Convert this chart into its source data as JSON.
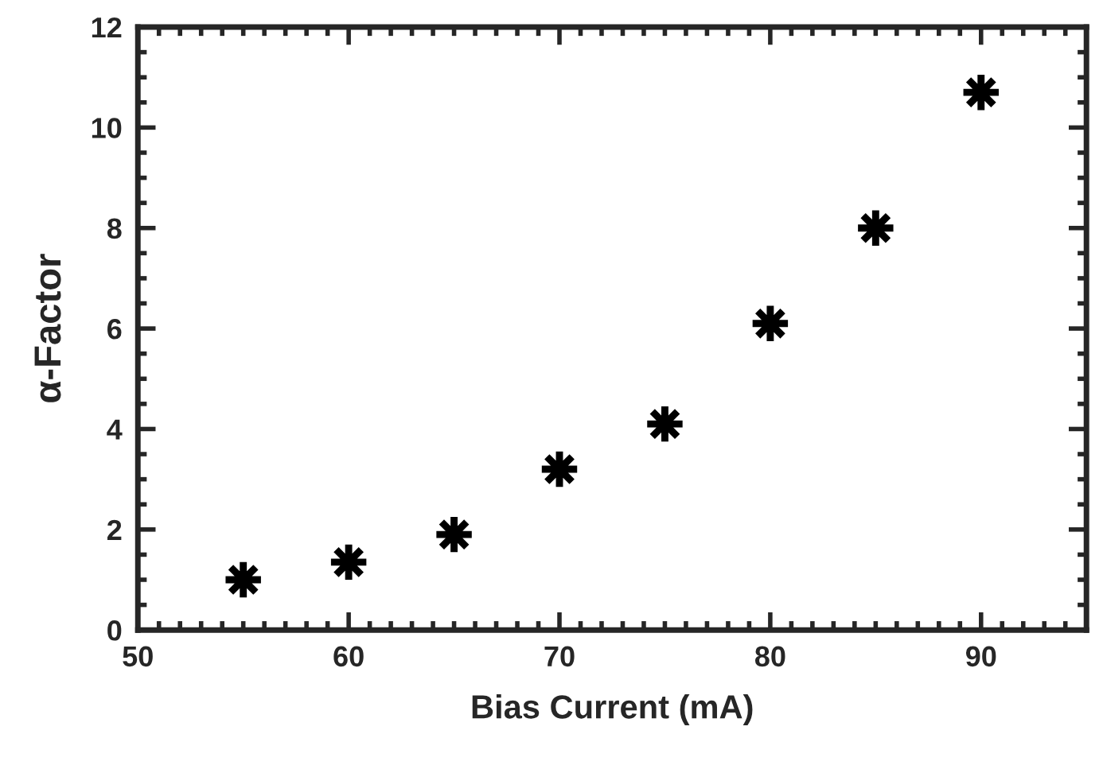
{
  "chart_data": {
    "type": "scatter",
    "xlabel": "Bias Current (mA)",
    "ylabel": "α-Factor",
    "x": [
      55,
      60,
      65,
      70,
      75,
      80,
      85,
      90
    ],
    "values": [
      1.0,
      1.35,
      1.9,
      3.2,
      4.1,
      6.1,
      8.0,
      10.7
    ],
    "color": "#000000",
    "marker": "star",
    "grid": false,
    "legend": false,
    "xlim": [
      50,
      95
    ],
    "xticks": [
      50,
      60,
      70,
      80,
      90
    ],
    "ylim": [
      0,
      12
    ],
    "yticks": [
      0,
      2,
      4,
      6,
      8,
      10,
      12
    ]
  }
}
